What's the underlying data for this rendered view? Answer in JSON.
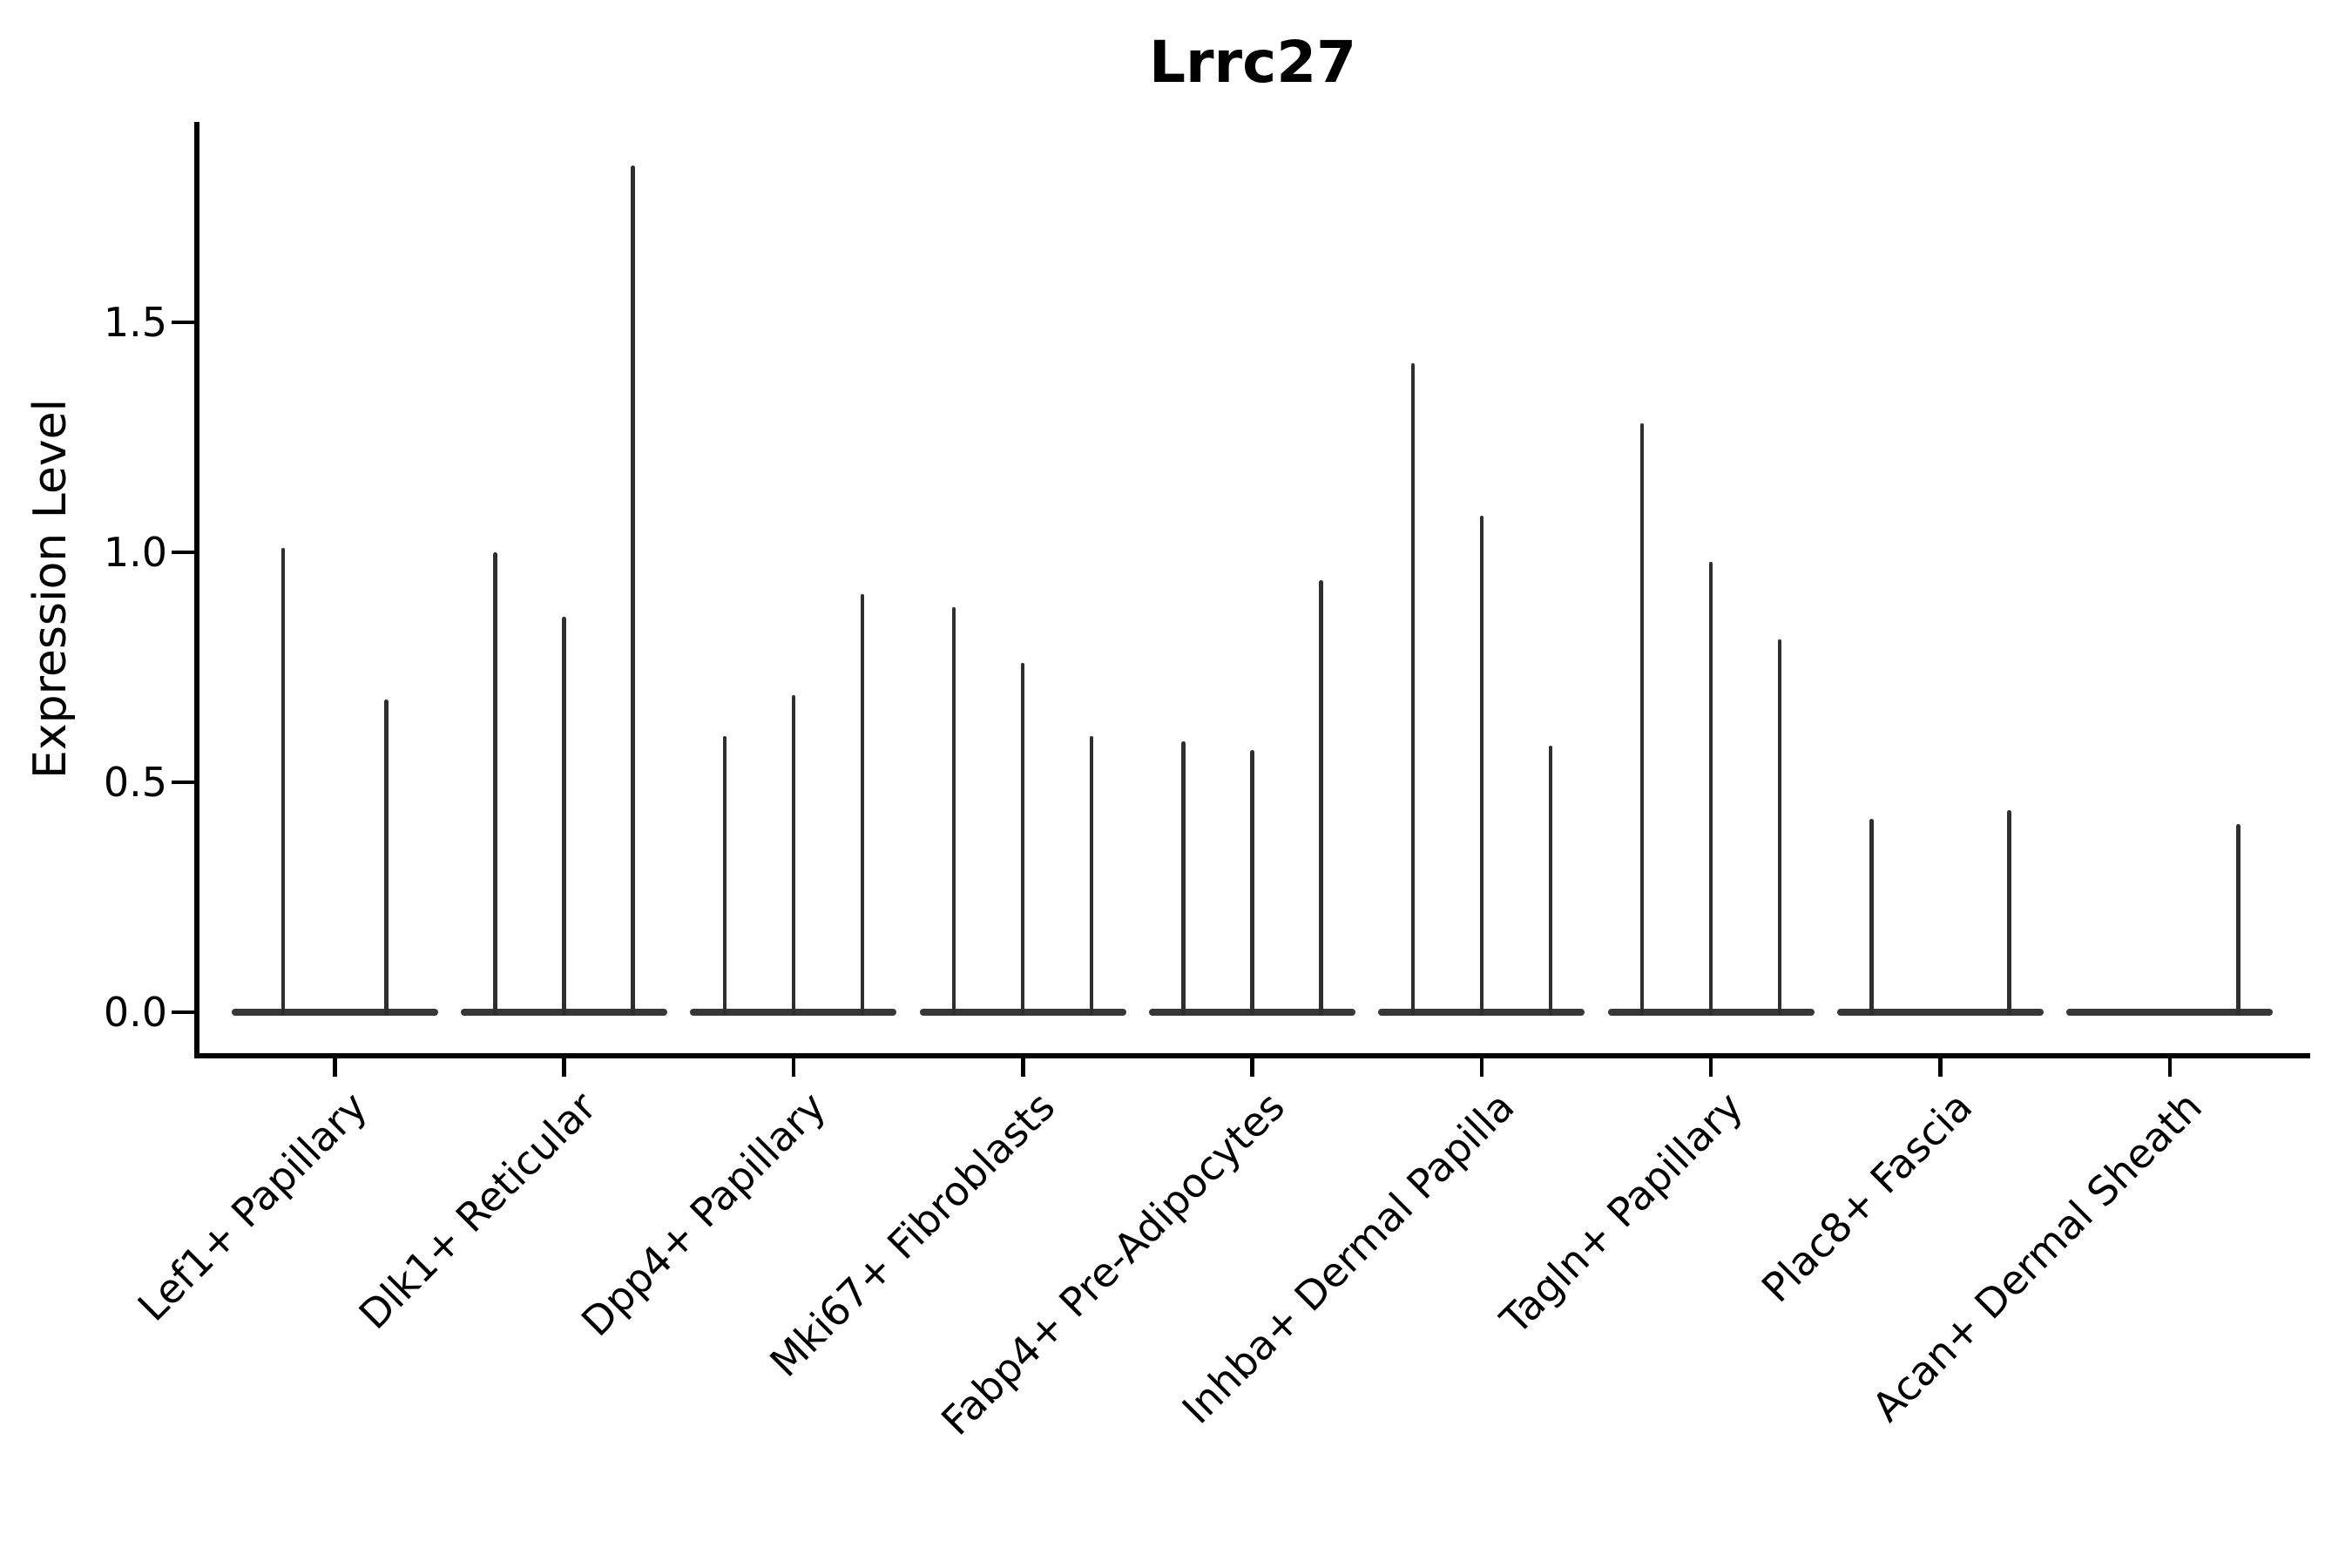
{
  "title": "Lrrc27",
  "y_axis": {
    "label": "Expression Level",
    "ticks": [
      {
        "label": "0.0",
        "value": 0.0
      },
      {
        "label": "0.5",
        "value": 0.5
      },
      {
        "label": "1.0",
        "value": 1.0
      },
      {
        "label": "1.5",
        "value": 1.5
      }
    ]
  },
  "colors": {
    "violin_stroke": "#2f2f2f",
    "violin_baseline": "#373737",
    "axis": "#000000",
    "text": "#000000",
    "background": "#ffffff"
  },
  "chart_data": {
    "type": "violin",
    "title": "Lrrc27",
    "xlabel": "",
    "ylabel": "Expression Level",
    "ylim": [
      -0.09,
      1.94
    ],
    "yticks": [
      0.0,
      0.5,
      1.0,
      1.5
    ],
    "grid": false,
    "legend": "none",
    "description": "Gene expression violin plot; each category holds 2-3 ultra-thin violins (one per sample). Each violin collapses to a flat baseline at 0 with a thin vertical spike up to its maximum expression value; a peak of 0 means a flat violin with no spike.",
    "categories": [
      "Lef1+ Papillary",
      "Dlk1+ Reticular",
      "Dpp4+ Papillary",
      "Mki67+ Fibroblasts",
      "Fabp4+ Pre-Adipocytes",
      "Inhba+ Dermal Papilla",
      "Tagln+ Papillary",
      "Plac8+ Fascia",
      "Acan+ Dermal Sheath"
    ],
    "series": [
      {
        "category": "Lef1+ Papillary",
        "violin_peaks": [
          1.01,
          0.68
        ]
      },
      {
        "category": "Dlk1+ Reticular",
        "violin_peaks": [
          1.0,
          0.86,
          1.84
        ]
      },
      {
        "category": "Dpp4+ Papillary",
        "violin_peaks": [
          0.6,
          0.69,
          0.91
        ]
      },
      {
        "category": "Mki67+ Fibroblasts",
        "violin_peaks": [
          0.88,
          0.76,
          0.6
        ]
      },
      {
        "category": "Fabp4+ Pre-Adipocytes",
        "violin_peaks": [
          0.59,
          0.57,
          0.94
        ]
      },
      {
        "category": "Inhba+ Dermal Papilla",
        "violin_peaks": [
          1.41,
          1.08,
          0.58
        ]
      },
      {
        "category": "Tagln+ Papillary",
        "violin_peaks": [
          1.28,
          0.98,
          0.81
        ]
      },
      {
        "category": "Plac8+ Fascia",
        "violin_peaks": [
          0.42,
          0.0,
          0.44
        ]
      },
      {
        "category": "Acan+ Dermal Sheath",
        "violin_peaks": [
          0.0,
          0.0,
          0.41
        ]
      }
    ]
  }
}
